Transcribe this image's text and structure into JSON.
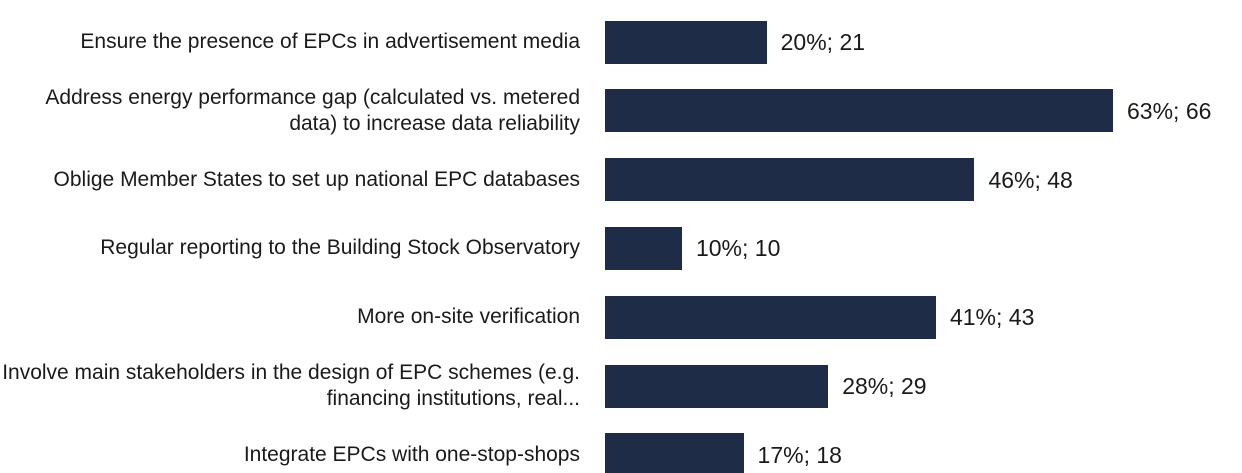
{
  "chart_data": {
    "type": "bar",
    "orientation": "horizontal",
    "categories": [
      "Ensure the presence of EPCs in advertisement media",
      "Address energy performance gap (calculated vs. metered data) to increase data reliability",
      "Oblige Member States to set up national EPC databases",
      "Regular reporting to the Building Stock Observatory",
      "More on-site verification",
      "Involve main stakeholders in the design of EPC schemes (e.g. financing institutions, real...",
      "Integrate EPCs with one-stop-shops"
    ],
    "values": [
      21,
      66,
      48,
      10,
      43,
      29,
      18
    ],
    "value_labels": [
      "20%; 21",
      "63%; 66",
      "46%; 48",
      "10%; 10",
      "41%; 43",
      "28%; 29",
      "17%; 18"
    ],
    "color": "#1e2c48"
  }
}
